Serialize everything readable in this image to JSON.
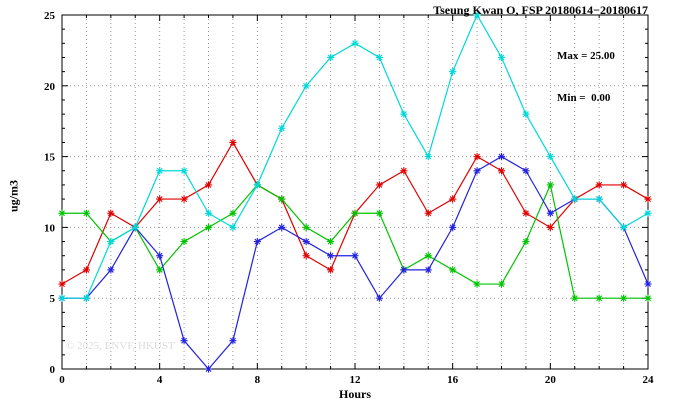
{
  "page": {
    "title": "Tseung Kwan O, FSP 20180614−20180617",
    "stats": {
      "max": "Max = 25.00",
      "min": "Min =  0.00"
    },
    "watermark": "© 2025, ENVF, HKUST"
  },
  "chart_data": {
    "type": "line",
    "title": "Tseung Kwan O, FSP 20180614−20180617",
    "xlabel": "Hours",
    "ylabel": "ug/m3",
    "xlim": [
      0,
      24
    ],
    "ylim": [
      0,
      25
    ],
    "xticks": [
      0,
      4,
      8,
      12,
      16,
      20,
      24
    ],
    "yticks": [
      0,
      5,
      10,
      15,
      20,
      25
    ],
    "grid": {
      "style": "dotted",
      "vertical_every": 1,
      "horizontal_every": 5
    },
    "legend": "none",
    "marker": "asterisk",
    "max_value": 25.0,
    "min_value": 0.0,
    "x": [
      0,
      1,
      2,
      3,
      4,
      5,
      6,
      7,
      8,
      9,
      10,
      11,
      12,
      13,
      14,
      15,
      16,
      17,
      18,
      19,
      20,
      21,
      22,
      23,
      24
    ],
    "series": [
      {
        "name": "red-line",
        "color": "#e10000",
        "values": [
          6,
          7,
          11,
          10,
          12,
          12,
          13,
          16,
          13,
          12,
          8,
          7,
          11,
          13,
          14,
          11,
          12,
          15,
          14,
          11,
          10,
          12,
          13,
          13,
          12
        ]
      },
      {
        "name": "green-line",
        "color": "#00c400",
        "values": [
          11,
          11,
          9,
          10,
          7,
          9,
          10,
          11,
          13,
          12,
          10,
          9,
          11,
          11,
          7,
          8,
          7,
          6,
          6,
          9,
          13,
          5,
          5,
          5,
          5
        ]
      },
      {
        "name": "blue-line",
        "color": "#2222dd",
        "values": [
          5,
          5,
          7,
          10,
          8,
          2,
          0,
          2,
          9,
          10,
          9,
          8,
          8,
          5,
          7,
          7,
          10,
          14,
          15,
          14,
          11,
          12,
          12,
          10,
          6
        ]
      },
      {
        "name": "cyan-line",
        "color": "#00d8d8",
        "values": [
          5,
          5,
          9,
          10,
          14,
          14,
          11,
          10,
          13,
          17,
          20,
          22,
          23,
          22,
          18,
          15,
          21,
          25,
          22,
          18,
          15,
          12,
          12,
          10,
          11
        ]
      }
    ]
  }
}
